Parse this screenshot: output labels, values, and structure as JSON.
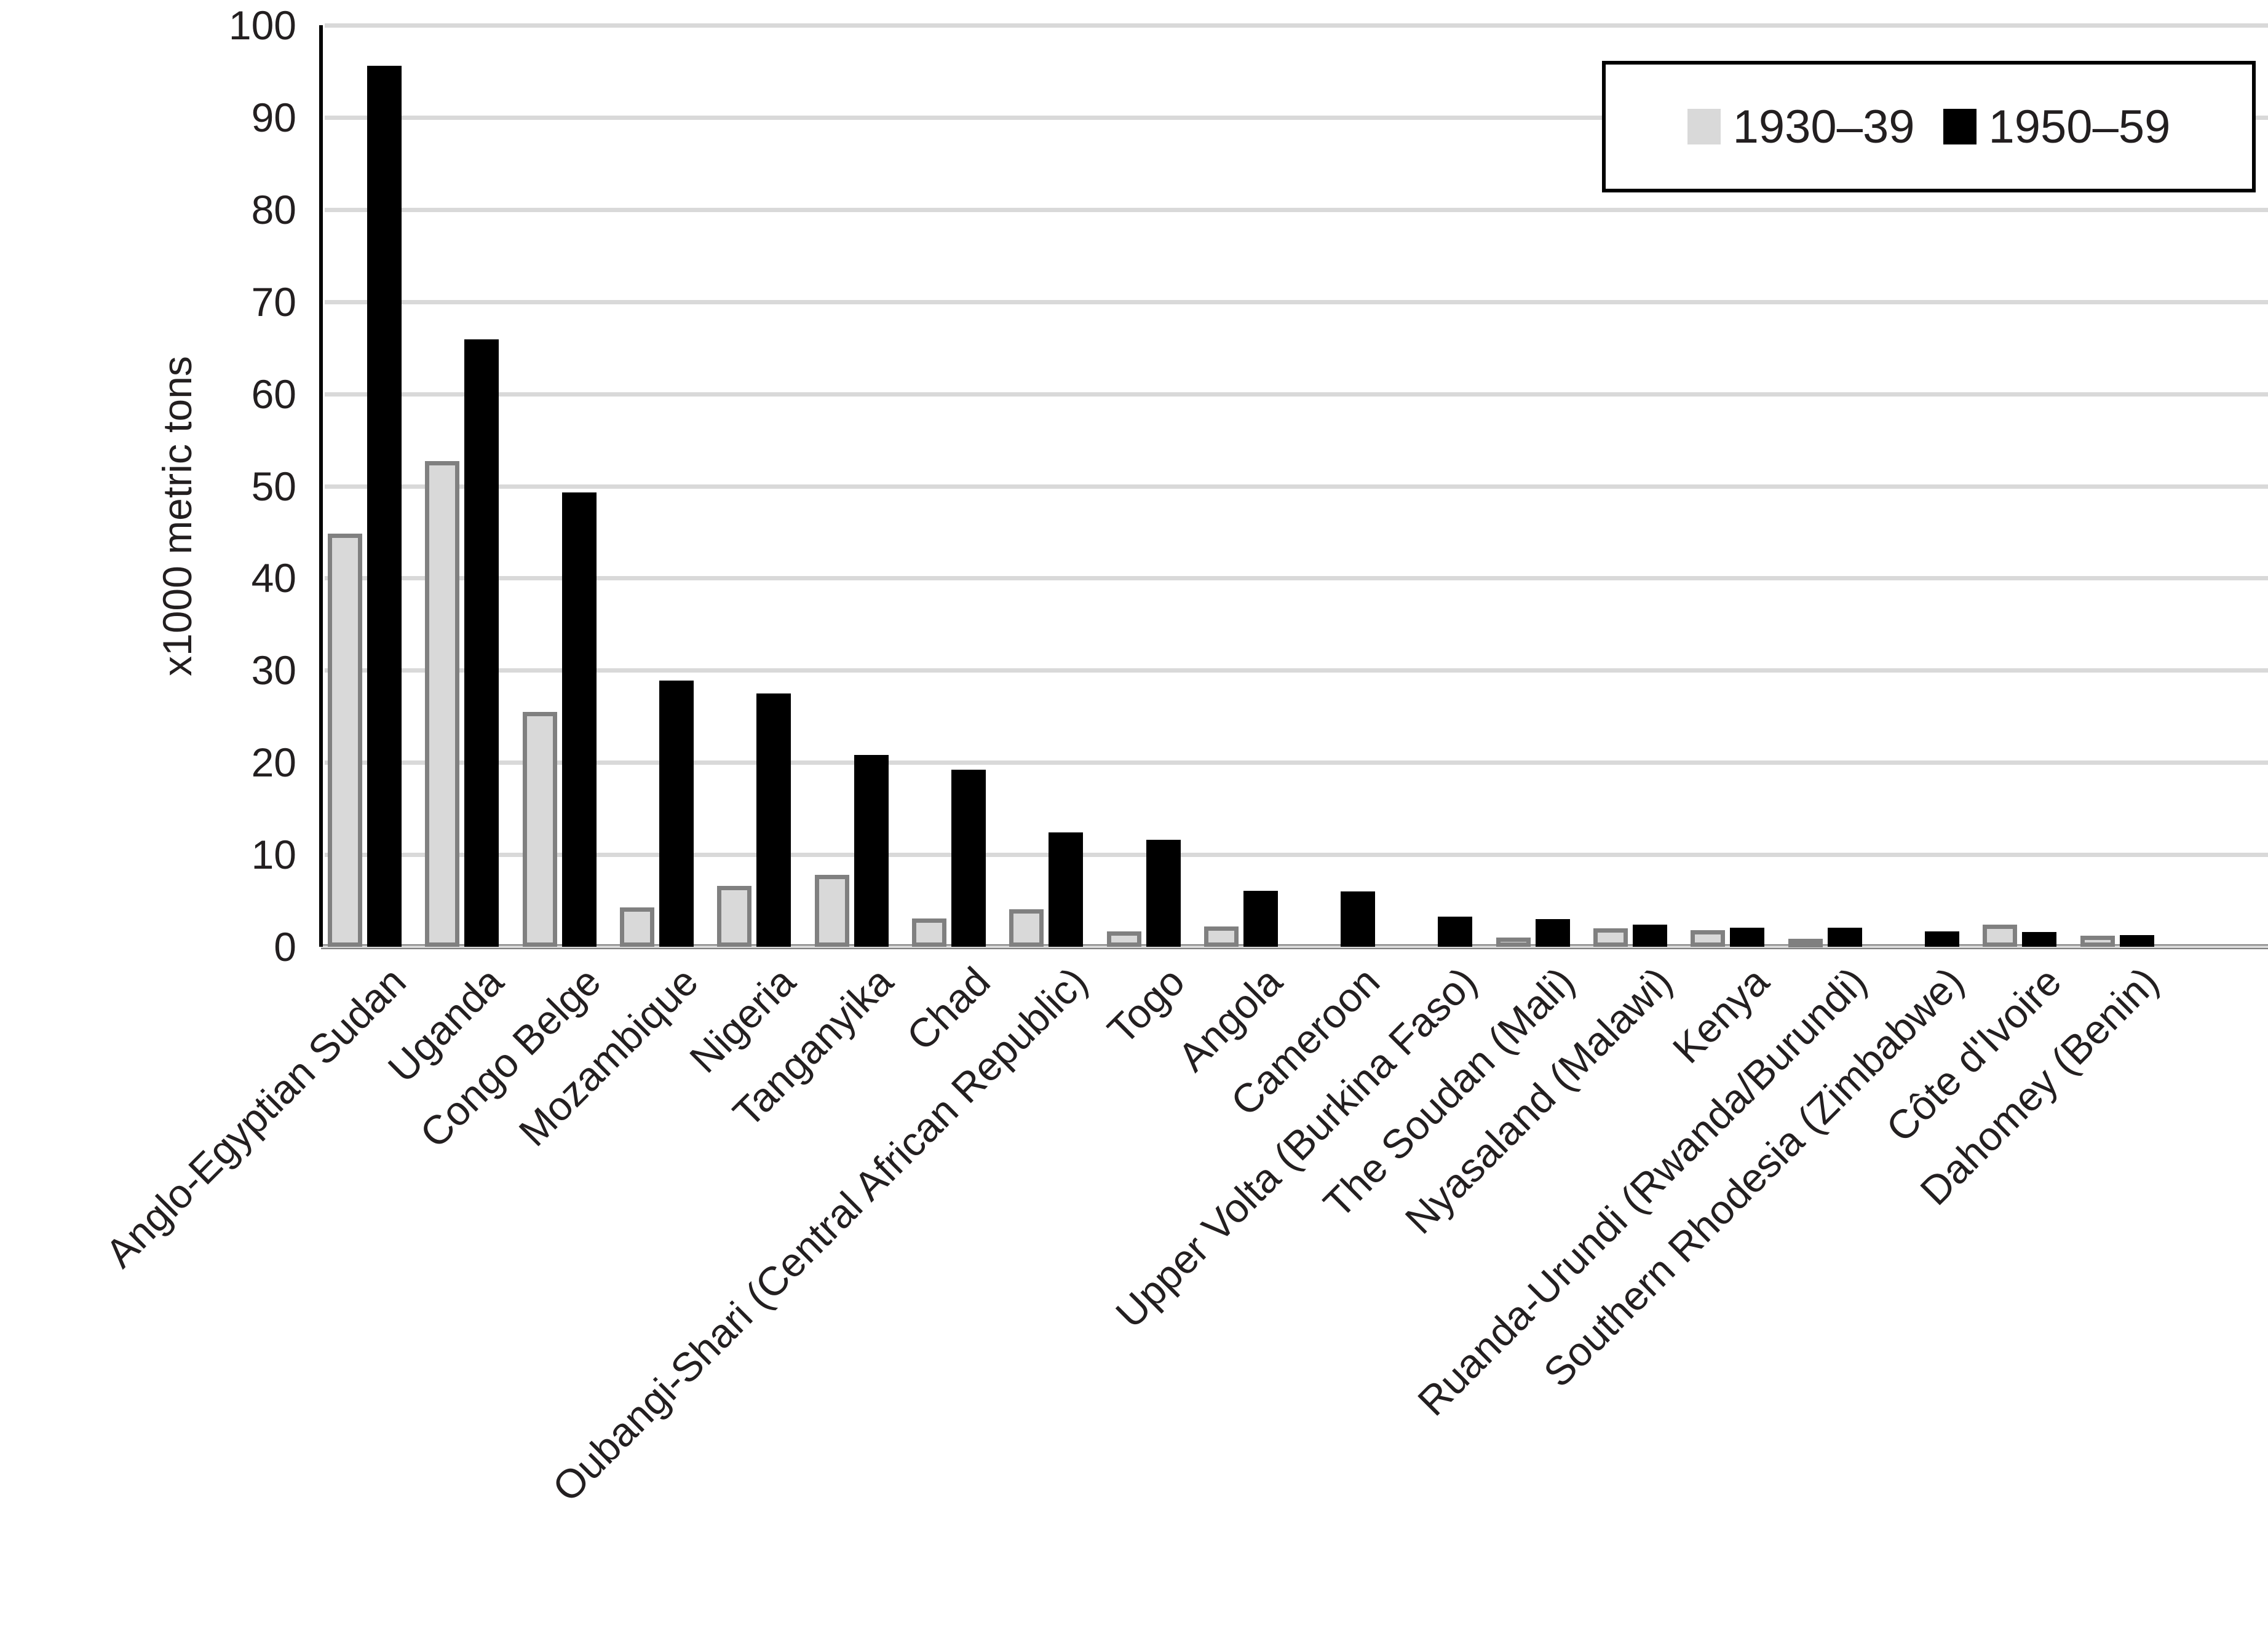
{
  "chart_data": {
    "type": "bar",
    "title": "",
    "xlabel": "",
    "ylabel": "x1000 metric tons",
    "ylim": [
      0,
      100
    ],
    "yticks": [
      0,
      10,
      20,
      30,
      40,
      50,
      60,
      70,
      80,
      90,
      100
    ],
    "grid": true,
    "legend_position": "top-right",
    "categories": [
      "Anglo-Egyptian Sudan",
      "Uganda",
      "Congo Belge",
      "Mozambique",
      "Nigeria",
      "Tanganyika",
      "Chad",
      "Oubangi-Shari (Central African Republic)",
      "Togo",
      "Angola",
      "Cameroon",
      "Upper Volta (Burkina Faso)",
      "The Soudan (Mali)",
      "Nyasaland (Malawi)",
      "Kenya",
      "Ruanda-Urundi (Rwanda/Burundi)",
      "Southern Rhodesia (Zimbabwe)",
      "Côte d'Ivoire",
      "Dahomey (Benin)"
    ],
    "series": [
      {
        "name": "1930–39",
        "color": "#d9d9d9",
        "border": "#808080",
        "values": [
          44.8,
          52.7,
          25.5,
          4.3,
          6.6,
          7.8,
          3.1,
          4.1,
          1.7,
          2.2,
          0,
          0,
          1.0,
          2.0,
          1.8,
          0.9,
          0,
          2.4,
          1.2
        ]
      },
      {
        "name": "1950–59",
        "color": "#000000",
        "values": [
          95.6,
          65.9,
          49.3,
          28.9,
          27.5,
          20.8,
          19.2,
          12.4,
          11.6,
          6.1,
          6.0,
          3.3,
          3.0,
          2.4,
          2.1,
          2.1,
          1.7,
          1.6,
          1.3
        ]
      }
    ]
  }
}
